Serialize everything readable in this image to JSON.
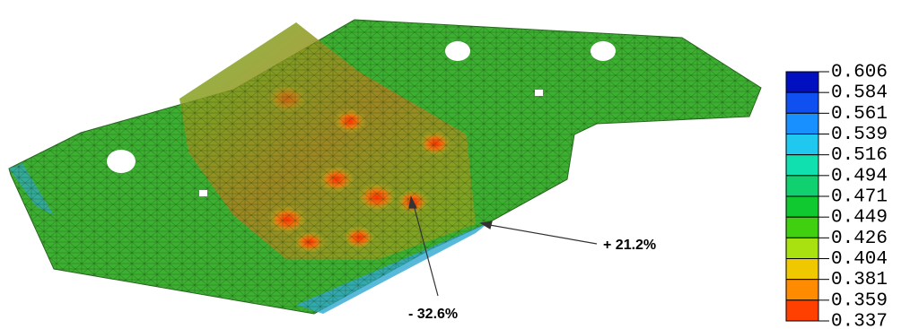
{
  "legend": {
    "labels": [
      "0.606",
      "0.584",
      "0.561",
      "0.539",
      "0.516",
      "0.494",
      "0.471",
      "0.449",
      "0.426",
      "0.404",
      "0.381",
      "0.359",
      "0.337"
    ],
    "colors": [
      "#0010c0",
      "#1050f0",
      "#1890ff",
      "#20c8f0",
      "#10e0b0",
      "#10d070",
      "#10c830",
      "#40d010",
      "#a8e010",
      "#f0c800",
      "#ff8c00",
      "#ff4000",
      "#ff0000"
    ]
  },
  "annotations": [
    "+ 21.2%",
    "- 32.6%"
  ]
}
